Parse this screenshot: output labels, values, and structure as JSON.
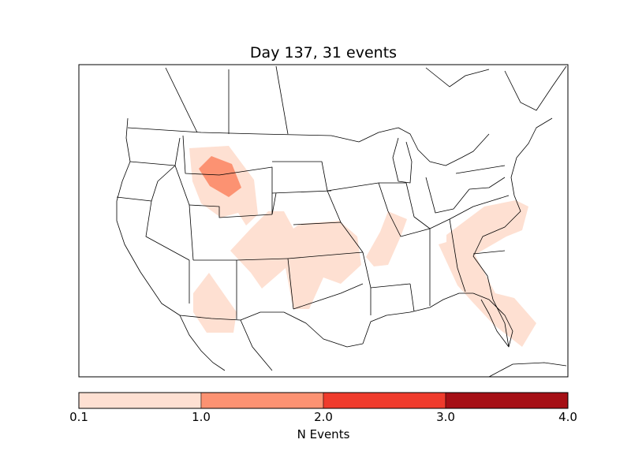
{
  "title": "Day 137, 31 events",
  "map": {
    "type": "choropleth-density",
    "region": "Continental United States",
    "colors": {
      "level1": "#fee0d2",
      "level2": "#fc9272",
      "level3": "#ef3b2c",
      "level4": "#a50f15",
      "outline": "#000000"
    }
  },
  "colorbar": {
    "label": "N Events",
    "ticks": [
      "0.1",
      "1.0",
      "2.0",
      "3.0",
      "4.0"
    ],
    "bins": [
      {
        "from": 0.1,
        "to": 1.0,
        "color": "#fee0d2"
      },
      {
        "from": 1.0,
        "to": 2.0,
        "color": "#fc9272"
      },
      {
        "from": 2.0,
        "to": 3.0,
        "color": "#ef3b2c"
      },
      {
        "from": 3.0,
        "to": 4.0,
        "color": "#a50f15"
      }
    ]
  }
}
